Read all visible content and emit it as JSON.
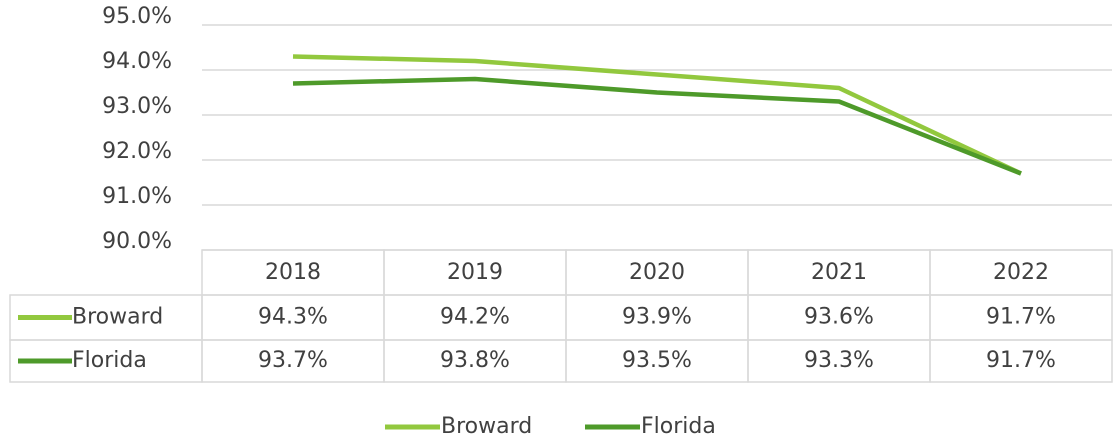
{
  "chart_data": {
    "type": "line",
    "categories": [
      "2018",
      "2019",
      "2020",
      "2021",
      "2022"
    ],
    "series": [
      {
        "name": "Broward",
        "color": "#92c83e",
        "values": [
          94.3,
          94.2,
          93.9,
          93.6,
          91.7
        ],
        "value_labels": [
          "94.3%",
          "94.2%",
          "93.9%",
          "93.6%",
          "91.7%"
        ]
      },
      {
        "name": "Florida",
        "color": "#4e9a2a",
        "values": [
          93.7,
          93.8,
          93.5,
          93.3,
          91.7
        ],
        "value_labels": [
          "93.7%",
          "93.8%",
          "93.5%",
          "93.3%",
          "91.7%"
        ]
      }
    ],
    "ylim": [
      90,
      95
    ],
    "yticks": [
      {
        "value": 90,
        "label": "90.0%"
      },
      {
        "value": 91,
        "label": "91.0%"
      },
      {
        "value": 92,
        "label": "92.0%"
      },
      {
        "value": 93,
        "label": "93.0%"
      },
      {
        "value": 94,
        "label": "94.0%"
      },
      {
        "value": 95,
        "label": "95.0%"
      }
    ],
    "grid": true,
    "legend": "bottom"
  }
}
